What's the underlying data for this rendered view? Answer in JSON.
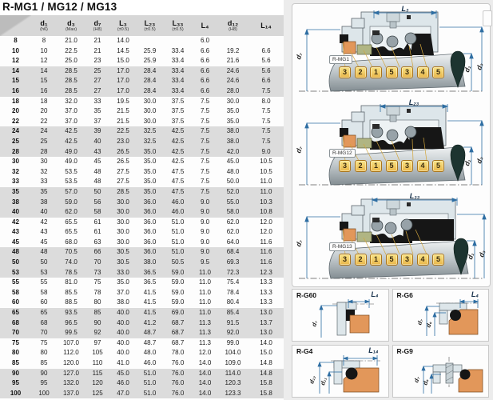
{
  "page_title": "R-MG1 / MG12 / MG13",
  "table": {
    "columns": [
      {
        "name": "d₁",
        "tol": "(h6)"
      },
      {
        "name": "d₃",
        "tol": "(Max)"
      },
      {
        "name": "d₇",
        "tol": "(H8)"
      },
      {
        "name": "L₃",
        "tol": "(±0.5)"
      },
      {
        "name": "L₂₃",
        "tol": "(±0.5)"
      },
      {
        "name": "L₃₃",
        "tol": "(±0.5)"
      },
      {
        "name": "L₄",
        "tol": ""
      },
      {
        "name": "d₁₂",
        "tol": "(H8)"
      },
      {
        "name": "L₁₄",
        "tol": ""
      }
    ],
    "rows": [
      [
        "8",
        "8",
        "21.0",
        "21",
        "14.0",
        "",
        "",
        "6.0",
        "",
        ""
      ],
      [
        "10",
        "10",
        "22.5",
        "21",
        "14.5",
        "25.9",
        "33.4",
        "6.6",
        "19.2",
        "6.6"
      ],
      [
        "12",
        "12",
        "25.0",
        "23",
        "15.0",
        "25.9",
        "33.4",
        "6.6",
        "21.6",
        "5.6"
      ],
      [
        "14",
        "14",
        "28.5",
        "25",
        "17.0",
        "28.4",
        "33.4",
        "6.6",
        "24.6",
        "5.6"
      ],
      [
        "15",
        "15",
        "28.5",
        "27",
        "17.0",
        "28.4",
        "33.4",
        "6.6",
        "24.6",
        "6.6"
      ],
      [
        "16",
        "16",
        "28.5",
        "27",
        "17.0",
        "28.4",
        "33.4",
        "6.6",
        "28.0",
        "7.5"
      ],
      [
        "18",
        "18",
        "32.0",
        "33",
        "19.5",
        "30.0",
        "37.5",
        "7.5",
        "30.0",
        "8.0"
      ],
      [
        "20",
        "20",
        "37.0",
        "35",
        "21.5",
        "30.0",
        "37.5",
        "7.5",
        "35.0",
        "7.5"
      ],
      [
        "22",
        "22",
        "37.0",
        "37",
        "21.5",
        "30.0",
        "37.5",
        "7.5",
        "35.0",
        "7.5"
      ],
      [
        "24",
        "24",
        "42.5",
        "39",
        "22.5",
        "32.5",
        "42.5",
        "7.5",
        "38.0",
        "7.5"
      ],
      [
        "25",
        "25",
        "42.5",
        "40",
        "23.0",
        "32.5",
        "42.5",
        "7.5",
        "38.0",
        "7.5"
      ],
      [
        "28",
        "28",
        "49.0",
        "43",
        "26.5",
        "35.0",
        "42.5",
        "7.5",
        "42.0",
        "9.0"
      ],
      [
        "30",
        "30",
        "49.0",
        "45",
        "26.5",
        "35.0",
        "42.5",
        "7.5",
        "45.0",
        "10.5"
      ],
      [
        "32",
        "32",
        "53.5",
        "48",
        "27.5",
        "35.0",
        "47.5",
        "7.5",
        "48.0",
        "10.5"
      ],
      [
        "33",
        "33",
        "53.5",
        "48",
        "27.5",
        "35.0",
        "47.5",
        "7.5",
        "50.0",
        "11.0"
      ],
      [
        "35",
        "35",
        "57.0",
        "50",
        "28.5",
        "35.0",
        "47.5",
        "7.5",
        "52.0",
        "11.0"
      ],
      [
        "38",
        "38",
        "59.0",
        "56",
        "30.0",
        "36.0",
        "46.0",
        "9.0",
        "55.0",
        "10.3"
      ],
      [
        "40",
        "40",
        "62.0",
        "58",
        "30.0",
        "36.0",
        "46.0",
        "9.0",
        "58.0",
        "10.8"
      ],
      [
        "42",
        "42",
        "65.5",
        "61",
        "30.0",
        "36.0",
        "51.0",
        "9.0",
        "62.0",
        "12.0"
      ],
      [
        "43",
        "43",
        "65.5",
        "61",
        "30.0",
        "36.0",
        "51.0",
        "9.0",
        "62.0",
        "12.0"
      ],
      [
        "45",
        "45",
        "68.0",
        "63",
        "30.0",
        "36.0",
        "51.0",
        "9.0",
        "64.0",
        "11.6"
      ],
      [
        "48",
        "48",
        "70.5",
        "66",
        "30.5",
        "36.0",
        "51.0",
        "9.0",
        "68.4",
        "11.6"
      ],
      [
        "50",
        "50",
        "74.0",
        "70",
        "30.5",
        "38.0",
        "50.5",
        "9.5",
        "69.3",
        "11.6"
      ],
      [
        "53",
        "53",
        "78.5",
        "73",
        "33.0",
        "36.5",
        "59.0",
        "11.0",
        "72.3",
        "12.3"
      ],
      [
        "55",
        "55",
        "81.0",
        "75",
        "35.0",
        "36.5",
        "59.0",
        "11.0",
        "75.4",
        "13.3"
      ],
      [
        "58",
        "58",
        "85.5",
        "78",
        "37.0",
        "41.5",
        "59.0",
        "11.0",
        "78.4",
        "13.3"
      ],
      [
        "60",
        "60",
        "88.5",
        "80",
        "38.0",
        "41.5",
        "59.0",
        "11.0",
        "80.4",
        "13.3"
      ],
      [
        "65",
        "65",
        "93.5",
        "85",
        "40.0",
        "41.5",
        "69.0",
        "11.0",
        "85.4",
        "13.0"
      ],
      [
        "68",
        "68",
        "96.5",
        "90",
        "40.0",
        "41.2",
        "68.7",
        "11.3",
        "91.5",
        "13.7"
      ],
      [
        "70",
        "70",
        "99.5",
        "92",
        "40.0",
        "48.7",
        "68.7",
        "11.3",
        "92.0",
        "13.0"
      ],
      [
        "75",
        "75",
        "107.0",
        "97",
        "40.0",
        "48.7",
        "68.7",
        "11.3",
        "99.0",
        "14.0"
      ],
      [
        "80",
        "80",
        "112.0",
        "105",
        "40.0",
        "48.0",
        "78.0",
        "12.0",
        "104.0",
        "15.0"
      ],
      [
        "85",
        "85",
        "120.0",
        "110",
        "41.0",
        "46.0",
        "76.0",
        "14.0",
        "109.0",
        "14.8"
      ],
      [
        "90",
        "90",
        "127.0",
        "115",
        "45.0",
        "51.0",
        "76.0",
        "14.0",
        "114.0",
        "14.8"
      ],
      [
        "95",
        "95",
        "132.0",
        "120",
        "46.0",
        "51.0",
        "76.0",
        "14.0",
        "120.3",
        "15.8"
      ],
      [
        "100",
        "100",
        "137.0",
        "125",
        "47.0",
        "51.0",
        "76.0",
        "14.0",
        "123.3",
        "15.8"
      ]
    ]
  },
  "seal_diagrams": [
    {
      "model": "R-MG1",
      "top_dim": "L₃",
      "left_dim": "d₇",
      "right_dims": [
        "d₁",
        "d₃"
      ],
      "callouts": [
        "3",
        "2",
        "1",
        "5",
        "3",
        "4",
        "5"
      ]
    },
    {
      "model": "R-MG12",
      "top_dim": "L₂₃",
      "left_dim": "d₇",
      "right_dims": [
        "d₁",
        "d₃"
      ],
      "callouts": [
        "3",
        "2",
        "1",
        "5",
        "3",
        "4",
        "5"
      ]
    },
    {
      "model": "R-MG13",
      "top_dim": "L₃₃",
      "left_dim": "d₇",
      "right_dims": [
        "d₁",
        "d₃"
      ],
      "callouts": [
        "3",
        "2",
        "1",
        "5",
        "3",
        "4",
        "5"
      ]
    }
  ],
  "detail_diagrams": [
    {
      "model": "R-G60",
      "top_dim": "L₄",
      "dims": [
        "d₇"
      ]
    },
    {
      "model": "R-G6",
      "top_dim": "L₄",
      "dims": [
        "d₇",
        "d₆"
      ]
    },
    {
      "model": "R-G4",
      "top_dim": "L₁₄",
      "dims": [
        "d₁₂",
        "d₁₁"
      ]
    },
    {
      "model": "R-G9",
      "top_dim": "",
      "dims": [
        "d₇",
        "d₆"
      ]
    }
  ],
  "colors": {
    "dimension_blue": "#2e6ea3",
    "callout_fill": "#f3cf5e",
    "callout_border": "#a8741c",
    "seat_orange": "#e2975a",
    "ring_olive": "#b0b583",
    "housing_gray": "#dde6ea",
    "elastomer_black": "#161616",
    "band_gray": "#dcdcdc",
    "header_gray": "#d7d7d7",
    "panel_bg": "#ececec",
    "teardrop_green": "#1d3430"
  }
}
